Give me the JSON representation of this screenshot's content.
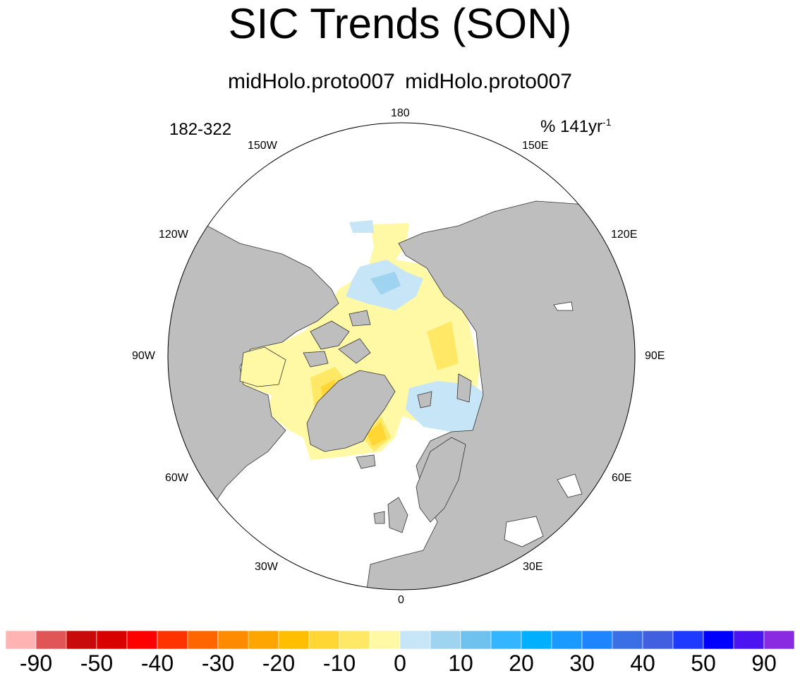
{
  "title": "SIC Trends (SON)",
  "subtitle_left": "midHolo.proto007",
  "subtitle_right": "midHolo.proto007",
  "period": "182-322",
  "units": {
    "prefix": "% 141yr",
    "exponent": "-1"
  },
  "longitude_labels": {
    "lon_180": "180",
    "lon_150e": "150E",
    "lon_120e": "120E",
    "lon_90e": "90E",
    "lon_60e": "60E",
    "lon_30e": "30E",
    "lon_0": "0",
    "lon_30w": "30W",
    "lon_60w": "60W",
    "lon_90w": "90W",
    "lon_120w": "120W",
    "lon_150w": "150W"
  },
  "colors": {
    "land": "#bebebe",
    "ocean": "#ffffff",
    "boundary": "#000000",
    "colorbar": [
      "#ffb3b3",
      "#e05555",
      "#c80a0a",
      "#d90000",
      "#ff0000",
      "#ff3300",
      "#ff6600",
      "#ff8c00",
      "#ffa500",
      "#ffbf00",
      "#ffd633",
      "#ffe866",
      "#fff9a6",
      "#c6e6f7",
      "#9fd4f0",
      "#70c2ee",
      "#33b5ff",
      "#00b0ff",
      "#1a99ff",
      "#1f85ff",
      "#3a6fe6",
      "#4060e0",
      "#1f3aff",
      "#0000ff",
      "#4b14f0",
      "#8a2be2"
    ]
  },
  "colorbar_labels": [
    "-90",
    "-50",
    "-40",
    "-30",
    "-20",
    "-10",
    "0",
    "10",
    "20",
    "30",
    "40",
    "50",
    "90"
  ]
}
